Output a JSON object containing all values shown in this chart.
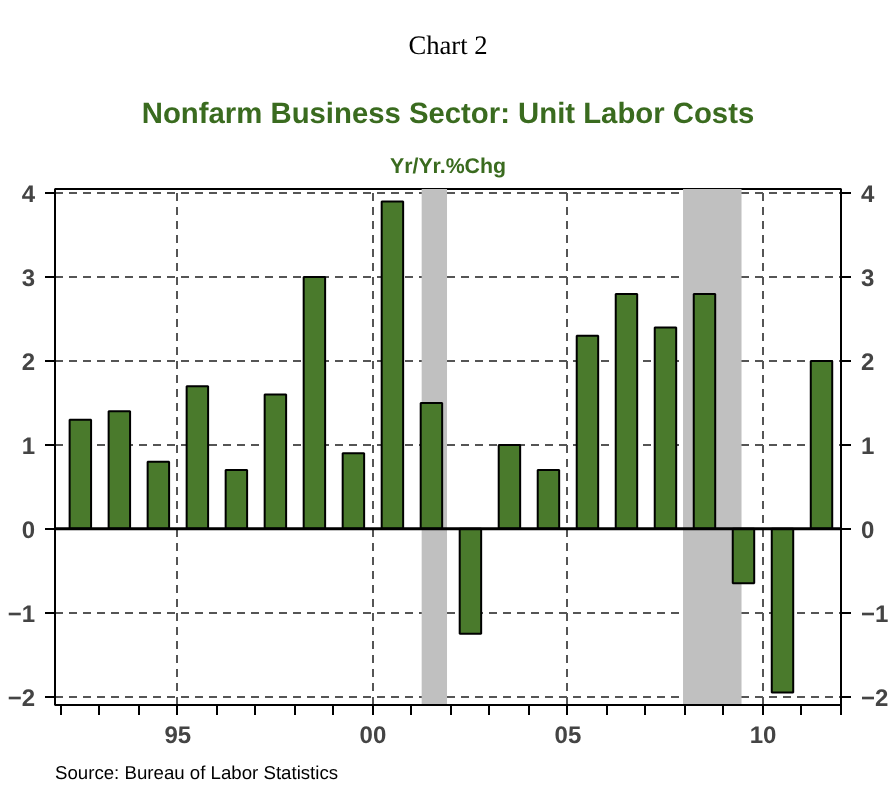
{
  "chart_data": {
    "type": "bar",
    "title": "Nonfarm Business Sector: Unit Labor Costs",
    "subtitle": "Yr/Yr.%Chg",
    "annotations": [
      "Chart 2",
      "Source:  Bureau of Labor Statistics"
    ],
    "x": [
      1992.5,
      1993.5,
      1994.5,
      1995.5,
      1996.5,
      1997.5,
      1998.5,
      1999.5,
      2000.5,
      2001.5,
      2002.5,
      2003.5,
      2004.5,
      2005.5,
      2006.5,
      2007.5,
      2008.5,
      2009.5,
      2010.5,
      2011.5
    ],
    "series": [
      {
        "color": "#4a7a2c",
        "values": [
          1.3,
          1.4,
          0.8,
          1.7,
          0.7,
          1.6,
          3.0,
          0.9,
          3.9,
          1.5,
          -1.25,
          1.0,
          0.7,
          2.3,
          2.8,
          2.4,
          2.8,
          -0.65,
          -1.95,
          2.0
        ]
      }
    ],
    "xlim": [
      1991.85,
      2012
    ],
    "xticks": [
      {
        "value": 1992,
        "label": null
      },
      {
        "value": 1993,
        "label": null
      },
      {
        "value": 1994,
        "label": null
      },
      {
        "value": 1995,
        "label": "95"
      },
      {
        "value": 1996,
        "label": null
      },
      {
        "value": 1997,
        "label": null
      },
      {
        "value": 1998,
        "label": null
      },
      {
        "value": 1999,
        "label": null
      },
      {
        "value": 2000,
        "label": "00"
      },
      {
        "value": 2001,
        "label": null
      },
      {
        "value": 2002,
        "label": null
      },
      {
        "value": 2003,
        "label": null
      },
      {
        "value": 2004,
        "label": null
      },
      {
        "value": 2005,
        "label": "05"
      },
      {
        "value": 2006,
        "label": null
      },
      {
        "value": 2007,
        "label": null
      },
      {
        "value": 2008,
        "label": null
      },
      {
        "value": 2009,
        "label": null
      },
      {
        "value": 2010,
        "label": "10"
      },
      {
        "value": 2011,
        "label": null
      },
      {
        "value": 2012,
        "label": null
      }
    ],
    "ylim": [
      -2.1,
      4.05
    ],
    "yticks": [
      -2,
      -1,
      0,
      1,
      2,
      3,
      4
    ],
    "y2lim": [
      -2.1,
      4.05
    ],
    "y2ticks": [
      -2,
      -1,
      0,
      1,
      2,
      3,
      4
    ],
    "bands": [
      {
        "axis": "x",
        "from": 2001.25,
        "to": 2001.9,
        "color": "#c0c0c0"
      },
      {
        "axis": "x",
        "from": 2007.95,
        "to": 2009.45,
        "color": "#c0c0c0"
      }
    ],
    "grid": true
  }
}
